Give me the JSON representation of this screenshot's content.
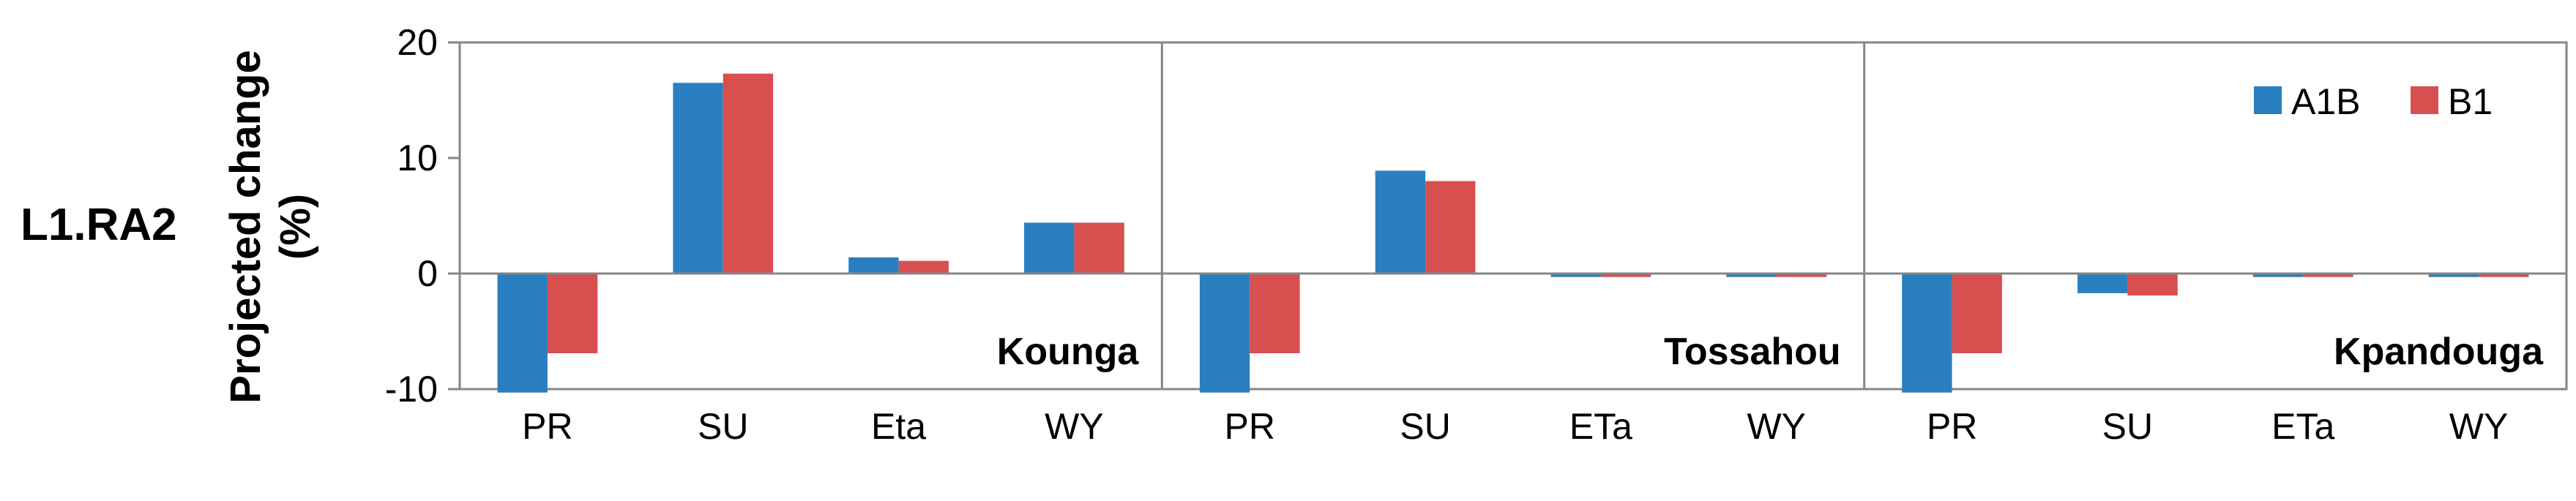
{
  "chart_data": {
    "type": "bar",
    "row_label": "L1.RA2",
    "ylabel_line1": "Projected change",
    "ylabel_line2": "(%)",
    "ylim": [
      -10,
      20
    ],
    "yticks": [
      -10,
      0,
      10,
      20
    ],
    "grid": false,
    "legend_position": "top-right",
    "series": [
      {
        "name": "A1B",
        "color": "#2a7fc0"
      },
      {
        "name": "B1",
        "color": "#d84f4f"
      }
    ],
    "panels": [
      {
        "label": "Kounga",
        "categories": [
          "PR",
          "SU",
          "Eta",
          "WY"
        ],
        "values": {
          "A1B": [
            -10.3,
            16.5,
            1.4,
            4.4
          ],
          "B1": [
            -6.9,
            17.3,
            1.1,
            4.4
          ]
        }
      },
      {
        "label": "Tossahou",
        "categories": [
          "PR",
          "SU",
          "ETa",
          "WY"
        ],
        "values": {
          "A1B": [
            -10.3,
            8.9,
            -0.3,
            -0.3
          ],
          "B1": [
            -6.9,
            8.0,
            -0.3,
            -0.3
          ]
        }
      },
      {
        "label": "Kpandouga",
        "categories": [
          "PR",
          "SU",
          "ETa",
          "WY"
        ],
        "values": {
          "A1B": [
            -10.3,
            -1.7,
            -0.3,
            -0.3
          ],
          "B1": [
            -6.9,
            -1.9,
            -0.3,
            -0.3
          ]
        }
      }
    ]
  }
}
